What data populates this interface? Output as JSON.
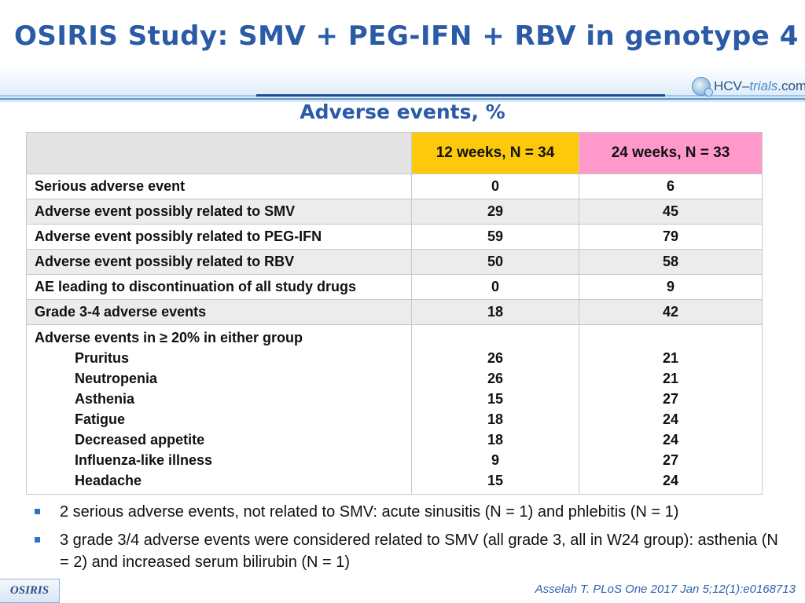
{
  "title": "OSIRIS Study: SMV + PEG-IFN + RBV in genotype 4",
  "logo": {
    "prefix": "HCV–",
    "middle": "trials",
    "suffix": ".com"
  },
  "subtitle": "Adverse events, %",
  "table": {
    "col_12": "12 weeks, N = 34",
    "col_24": "24 weeks, N = 33",
    "rows": [
      {
        "label": "Serious adverse event",
        "w12": "0",
        "w24": "6"
      },
      {
        "label": "Adverse event possibly related to SMV",
        "w12": "29",
        "w24": "45"
      },
      {
        "label": "Adverse event possibly related to PEG-IFN",
        "w12": "59",
        "w24": "79"
      },
      {
        "label": "Adverse event possibly related to RBV",
        "w12": "50",
        "w24": "58"
      },
      {
        "label": "AE leading to discontinuation of all study drugs",
        "w12": "0",
        "w24": "9"
      },
      {
        "label": "Grade 3-4 adverse events",
        "w12": "18",
        "w24": "42"
      }
    ],
    "group_label": "Adverse events in ≥ 20% in either group",
    "group_rows": [
      {
        "label": "Pruritus",
        "w12": "26",
        "w24": "21"
      },
      {
        "label": "Neutropenia",
        "w12": "26",
        "w24": "21"
      },
      {
        "label": "Asthenia",
        "w12": "15",
        "w24": "27"
      },
      {
        "label": "Fatigue",
        "w12": "18",
        "w24": "24"
      },
      {
        "label": "Decreased appetite",
        "w12": "18",
        "w24": "24"
      },
      {
        "label": "Influenza-like illness",
        "w12": "9",
        "w24": "27"
      },
      {
        "label": "Headache",
        "w12": "15",
        "w24": "24"
      }
    ]
  },
  "bullets": [
    "2 serious adverse events, not related to SMV: acute sinusitis (N = 1) and phlebitis (N = 1)",
    "3 grade 3/4 adverse events were considered related to SMV (all grade 3, all in W24 group): asthenia (N = 2) and increased serum bilirubin (N = 1)"
  ],
  "footer": {
    "badge": "OSIRIS",
    "citation": "Asselah T. PLoS One 2017 Jan 5;12(1):e0168713"
  },
  "colors": {
    "title": "#2b5aa6",
    "col_12_bg": "#fdc90a",
    "col_24_bg": "#ff99cc",
    "bullet": "#2e72c2"
  }
}
